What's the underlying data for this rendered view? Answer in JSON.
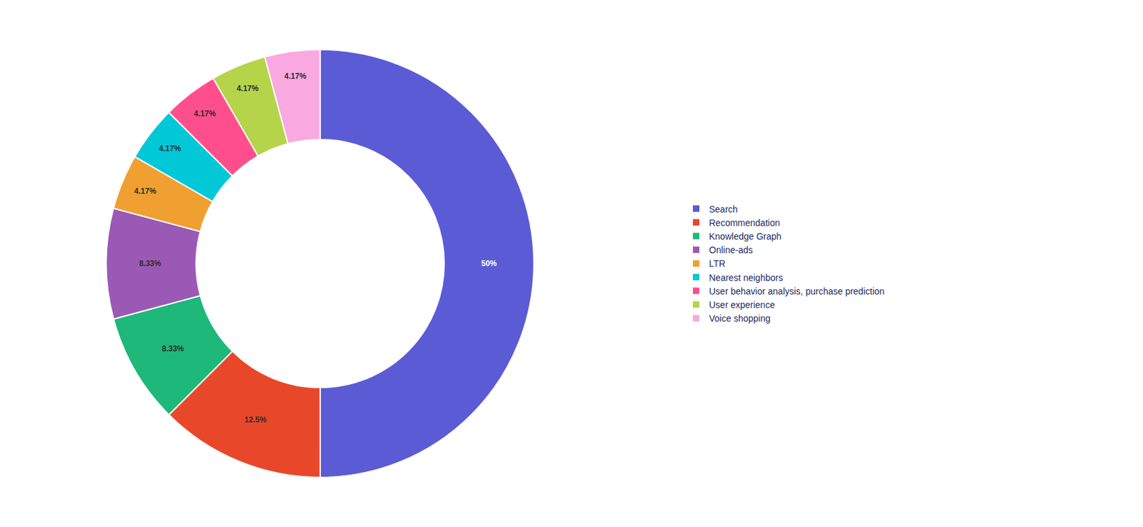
{
  "chart_data": {
    "type": "donut",
    "categories": [
      "Search",
      "Recommendation",
      "Knowledge Graph",
      "Online-ads",
      "LTR",
      "Nearest neighbors",
      "User behavior analysis, purchase prediction",
      "User experience",
      "Voice shopping"
    ],
    "values": [
      50.0,
      12.5,
      8.33,
      8.33,
      4.17,
      4.17,
      4.17,
      4.17,
      4.17
    ],
    "value_labels": [
      "50%",
      "12.5%",
      "8.33%",
      "8.33%",
      "4.17%",
      "4.17%",
      "4.17%",
      "4.17%",
      "4.17%"
    ],
    "colors": [
      "#5B5BD6",
      "#E8472A",
      "#1DB87A",
      "#9B59B6",
      "#F0A030",
      "#00C8D7",
      "#FF4E8C",
      "#B5D44A",
      "#F9A8E0"
    ],
    "data_labels": true,
    "legend": "right"
  }
}
